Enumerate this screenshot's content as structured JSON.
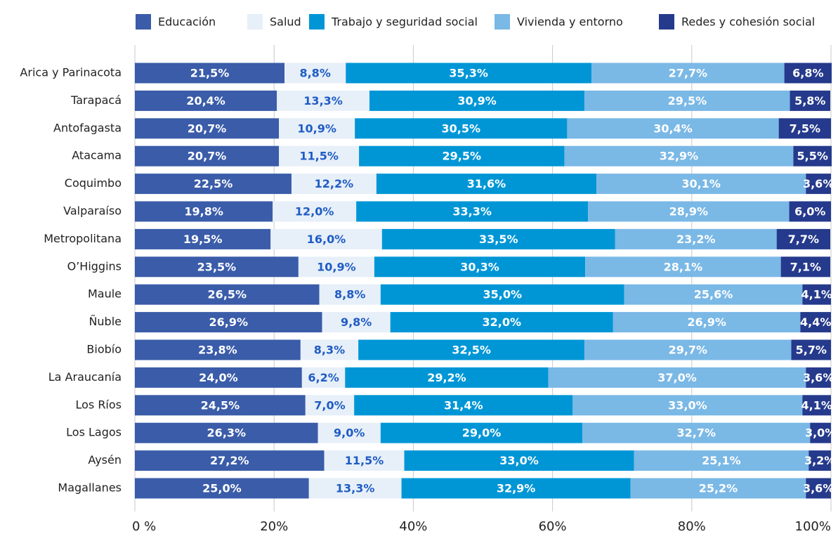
{
  "chart_data": {
    "type": "stacked-barh",
    "categories": [
      "Arica y Parinacota",
      "Tarapacá",
      "Antofagasta",
      "Atacama",
      "Coquimbo",
      "Valparaíso",
      "Metropolitana",
      "O’Higgins",
      "Maule",
      "Ñuble",
      "Biobío",
      "La Araucanía",
      "Los Ríos",
      "Los Lagos",
      "Aysén",
      "Magallanes"
    ],
    "series": [
      {
        "name": "Educación",
        "color": "#3a5ca9",
        "label_color": "#ffffff",
        "values": [
          21.5,
          20.4,
          20.7,
          20.7,
          22.5,
          19.8,
          19.5,
          23.5,
          26.5,
          26.9,
          23.8,
          24.0,
          24.5,
          26.3,
          27.2,
          25.0
        ],
        "value_labels": [
          "21,5%",
          "20,4%",
          "20,7%",
          "20,7%",
          "22,5%",
          "19,8%",
          "19,5%",
          "23,5%",
          "26,5%",
          "26,9%",
          "23,8%",
          "24,0%",
          "24,5%",
          "26,3%",
          "27,2%",
          "25,0%"
        ]
      },
      {
        "name": "Salud",
        "color": "#e7eff9",
        "label_color": "#1f5cc4",
        "values": [
          8.8,
          13.3,
          10.9,
          11.5,
          12.2,
          12.0,
          16.0,
          10.9,
          8.8,
          9.8,
          8.3,
          6.2,
          7.0,
          9.0,
          11.5,
          13.3
        ],
        "value_labels": [
          "8,8%",
          "13,3%",
          "10,9%",
          "11,5%",
          "12,2%",
          "12,0%",
          "16,0%",
          "10,9%",
          "8,8%",
          "9,8%",
          "8,3%",
          "6,2%",
          "7,0%",
          "9,0%",
          "11,5%",
          "13,3%"
        ]
      },
      {
        "name": "Trabajo y seguridad social",
        "color": "#0096d6",
        "label_color": "#ffffff",
        "values": [
          35.3,
          30.9,
          30.5,
          29.5,
          31.6,
          33.3,
          33.5,
          30.3,
          35.0,
          32.0,
          32.5,
          29.2,
          31.4,
          29.0,
          33.0,
          32.9
        ],
        "value_labels": [
          "35,3%",
          "30,9%",
          "30,5%",
          "29,5%",
          "31,6%",
          "33,3%",
          "33,5%",
          "30,3%",
          "35,0%",
          "32,0%",
          "32,5%",
          "29,2%",
          "31,4%",
          "29,0%",
          "33,0%",
          "32,9%"
        ]
      },
      {
        "name": "Vivienda y entorno",
        "color": "#7ab8e6",
        "label_color": "#ffffff",
        "values": [
          27.7,
          29.5,
          30.4,
          32.9,
          30.1,
          28.9,
          23.2,
          28.1,
          25.6,
          26.9,
          29.7,
          37.0,
          33.0,
          32.7,
          25.1,
          25.2
        ],
        "value_labels": [
          "27,7%",
          "29,5%",
          "30,4%",
          "32,9%",
          "30,1%",
          "28,9%",
          "23,2%",
          "28,1%",
          "25,6%",
          "26,9%",
          "29,7%",
          "37,0%",
          "33,0%",
          "32,7%",
          "25,1%",
          "25,2%"
        ]
      },
      {
        "name": "Redes y cohesión social",
        "color": "#253a8c",
        "label_color": "#ffffff",
        "values": [
          6.8,
          5.8,
          7.5,
          5.5,
          3.6,
          6.0,
          7.7,
          7.1,
          4.1,
          4.4,
          5.7,
          3.6,
          4.1,
          3.0,
          3.2,
          3.6
        ],
        "value_labels": [
          "6,8%",
          "5,8%",
          "7,5%",
          "5,5%",
          "3,6%",
          "6,0%",
          "7,7%",
          "7,1%",
          "4,1%",
          "4,4%",
          "5,7%",
          "3,6%",
          "4,1%",
          "3,0%",
          "3,2%",
          "3,6%"
        ]
      }
    ],
    "xlim": [
      0,
      100
    ],
    "xticks": [
      {
        "value": 0,
        "label": "0 %"
      },
      {
        "value": 20,
        "label": "20%"
      },
      {
        "value": 40,
        "label": "40%"
      },
      {
        "value": 60,
        "label": "60%"
      },
      {
        "value": 80,
        "label": "80%"
      },
      {
        "value": 100,
        "label": "100%"
      }
    ],
    "grid": true,
    "legend": "top"
  }
}
